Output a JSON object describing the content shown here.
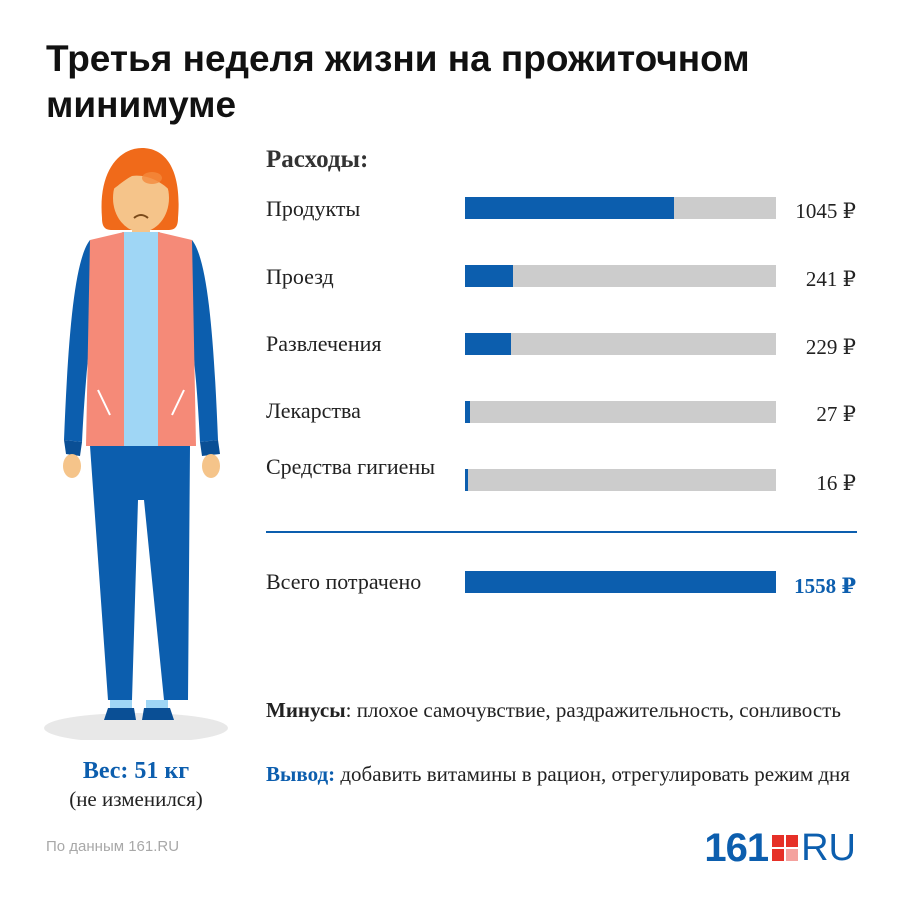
{
  "title": "Третья неделя жизни на прожиточном минимуме",
  "colors": {
    "accent": "#0c5eae",
    "track": "#cccccc",
    "logo_red": "#e63027"
  },
  "chart_data": {
    "type": "bar",
    "orientation": "horizontal",
    "title": "Расходы:",
    "categories": [
      "Продукты",
      "Проезд",
      "Развлечения",
      "Лекарства",
      "Средства гигиены"
    ],
    "values": [
      1045,
      241,
      229,
      27,
      16
    ],
    "value_labels": [
      "1045 ₽",
      "241 ₽",
      "229 ₽",
      "27 ₽",
      "16 ₽"
    ],
    "xlim": [
      0,
      1558
    ],
    "total": {
      "label": "Всего потрачено",
      "value": 1558,
      "value_label": "1558 ₽"
    }
  },
  "notes": {
    "minus_label": "Минусы",
    "minus_text": "плохое самочувствие, раздражительность, сонливость",
    "conclusion_label": "Вывод:",
    "conclusion_text": "добавить витамины в рацион, отрегулировать режим дня"
  },
  "weight": {
    "main": "Вес: 51 кг",
    "sub": "(не изменился)"
  },
  "source": "По данным 161.RU",
  "logo": {
    "number": "161",
    "text": "RU"
  }
}
